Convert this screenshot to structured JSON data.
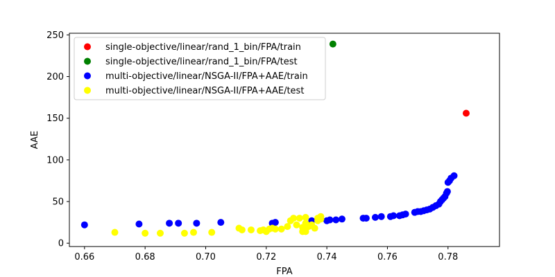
{
  "chart_data": {
    "type": "scatter",
    "xlabel": "FPA",
    "ylabel": "AAE",
    "xlim": [
      0.655,
      0.797
    ],
    "ylim": [
      -4,
      252
    ],
    "xticks": [
      0.66,
      0.68,
      0.7,
      0.72,
      0.74,
      0.76,
      0.78
    ],
    "xtick_labels": [
      "0.66",
      "0.68",
      "0.70",
      "0.72",
      "0.74",
      "0.76",
      "0.78"
    ],
    "yticks": [
      0,
      50,
      100,
      150,
      200,
      250
    ],
    "ytick_labels": [
      "0",
      "50",
      "100",
      "150",
      "200",
      "250"
    ],
    "grid": false,
    "legend_position": "top-left",
    "series": [
      {
        "name": "single-objective/linear/rand_1_bin/FPA/train",
        "color": "#ff0000",
        "points": [
          [
            0.786,
            156
          ]
        ]
      },
      {
        "name": "single-objective/linear/rand_1_bin/FPA/test",
        "color": "#008000",
        "points": [
          [
            0.742,
            239
          ]
        ]
      },
      {
        "name": "multi-objective/linear/NSGA-II/FPA+AAE/train",
        "color": "#0000ff",
        "points": [
          [
            0.66,
            22
          ],
          [
            0.678,
            23
          ],
          [
            0.688,
            24
          ],
          [
            0.691,
            24
          ],
          [
            0.697,
            24
          ],
          [
            0.705,
            25
          ],
          [
            0.722,
            24
          ],
          [
            0.723,
            25
          ],
          [
            0.735,
            27
          ],
          [
            0.74,
            27
          ],
          [
            0.741,
            28
          ],
          [
            0.743,
            28
          ],
          [
            0.745,
            29
          ],
          [
            0.752,
            30
          ],
          [
            0.753,
            30
          ],
          [
            0.756,
            31
          ],
          [
            0.758,
            32
          ],
          [
            0.761,
            32
          ],
          [
            0.762,
            33
          ],
          [
            0.764,
            33
          ],
          [
            0.765,
            34
          ],
          [
            0.766,
            35
          ],
          [
            0.769,
            37
          ],
          [
            0.77,
            38
          ],
          [
            0.771,
            38
          ],
          [
            0.772,
            39
          ],
          [
            0.773,
            40
          ],
          [
            0.774,
            41
          ],
          [
            0.775,
            43
          ],
          [
            0.776,
            45
          ],
          [
            0.777,
            47
          ],
          [
            0.7775,
            50
          ],
          [
            0.778,
            52
          ],
          [
            0.7785,
            54
          ],
          [
            0.779,
            56
          ],
          [
            0.7795,
            60
          ],
          [
            0.7798,
            62
          ],
          [
            0.78,
            73
          ],
          [
            0.7805,
            75
          ],
          [
            0.781,
            78
          ],
          [
            0.782,
            81
          ]
        ]
      },
      {
        "name": "multi-objective/linear/NSGA-II/FPA+AAE/test",
        "color": "#ffff00",
        "points": [
          [
            0.67,
            13
          ],
          [
            0.68,
            12
          ],
          [
            0.685,
            12
          ],
          [
            0.693,
            12
          ],
          [
            0.696,
            13
          ],
          [
            0.702,
            13
          ],
          [
            0.711,
            18
          ],
          [
            0.712,
            16
          ],
          [
            0.715,
            16
          ],
          [
            0.718,
            15
          ],
          [
            0.719,
            16
          ],
          [
            0.72,
            14
          ],
          [
            0.721,
            17
          ],
          [
            0.722,
            18
          ],
          [
            0.723,
            17
          ],
          [
            0.725,
            17
          ],
          [
            0.727,
            20
          ],
          [
            0.728,
            27
          ],
          [
            0.729,
            30
          ],
          [
            0.73,
            22
          ],
          [
            0.731,
            30
          ],
          [
            0.732,
            14
          ],
          [
            0.732,
            19
          ],
          [
            0.733,
            14
          ],
          [
            0.733,
            24
          ],
          [
            0.733,
            31
          ],
          [
            0.734,
            20
          ],
          [
            0.735,
            22
          ],
          [
            0.736,
            18
          ],
          [
            0.737,
            27
          ],
          [
            0.737,
            30
          ],
          [
            0.738,
            32
          ],
          [
            0.738,
            29
          ]
        ]
      }
    ]
  }
}
